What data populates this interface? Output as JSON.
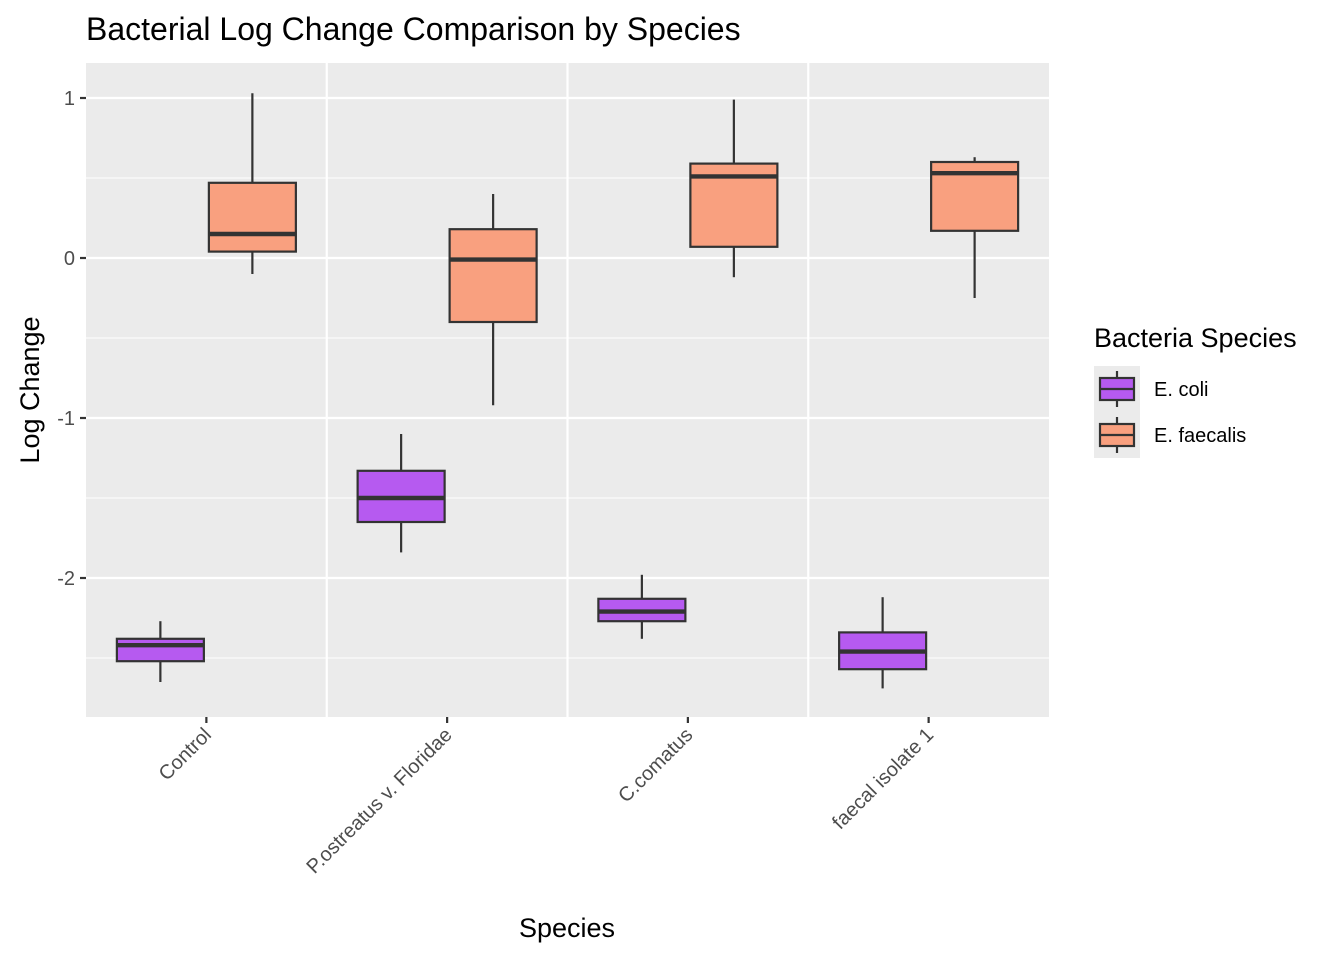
{
  "chart_data": {
    "type": "boxplot",
    "title": "Bacterial Log Change Comparison by Species",
    "xlabel": "Species",
    "ylabel": "Log Change",
    "categories": [
      "Control",
      "P.ostreatus v. Floridae",
      "C.comatus",
      "faecal isolate 1"
    ],
    "ylim": [
      -2.85,
      1.22
    ],
    "y_ticks": [
      1,
      0,
      -1,
      -2
    ],
    "y_tick_labels": [
      "1",
      "0",
      "-1",
      "-2"
    ],
    "grid": true,
    "legend": {
      "title": "Bacteria Species",
      "position": "right"
    },
    "series": [
      {
        "name": "E. coli",
        "color": "#b65af0",
        "boxes": [
          {
            "min": -2.65,
            "q1": -2.52,
            "median": -2.42,
            "q3": -2.38,
            "max": -2.27
          },
          {
            "min": -1.84,
            "q1": -1.65,
            "median": -1.5,
            "q3": -1.33,
            "max": -1.1
          },
          {
            "min": -2.38,
            "q1": -2.27,
            "median": -2.21,
            "q3": -2.13,
            "max": -1.98
          },
          {
            "min": -2.69,
            "q1": -2.57,
            "median": -2.46,
            "q3": -2.34,
            "max": -2.12
          }
        ]
      },
      {
        "name": "E. faecalis",
        "color": "#f9a07f",
        "boxes": [
          {
            "min": -0.1,
            "q1": 0.04,
            "median": 0.15,
            "q3": 0.47,
            "max": 1.03
          },
          {
            "min": -0.92,
            "q1": -0.4,
            "median": -0.01,
            "q3": 0.18,
            "max": 0.4
          },
          {
            "min": -0.12,
            "q1": 0.07,
            "median": 0.51,
            "q3": 0.59,
            "max": 0.99
          },
          {
            "min": -0.25,
            "q1": 0.17,
            "median": 0.53,
            "q3": 0.6,
            "max": 0.63
          }
        ]
      }
    ]
  }
}
